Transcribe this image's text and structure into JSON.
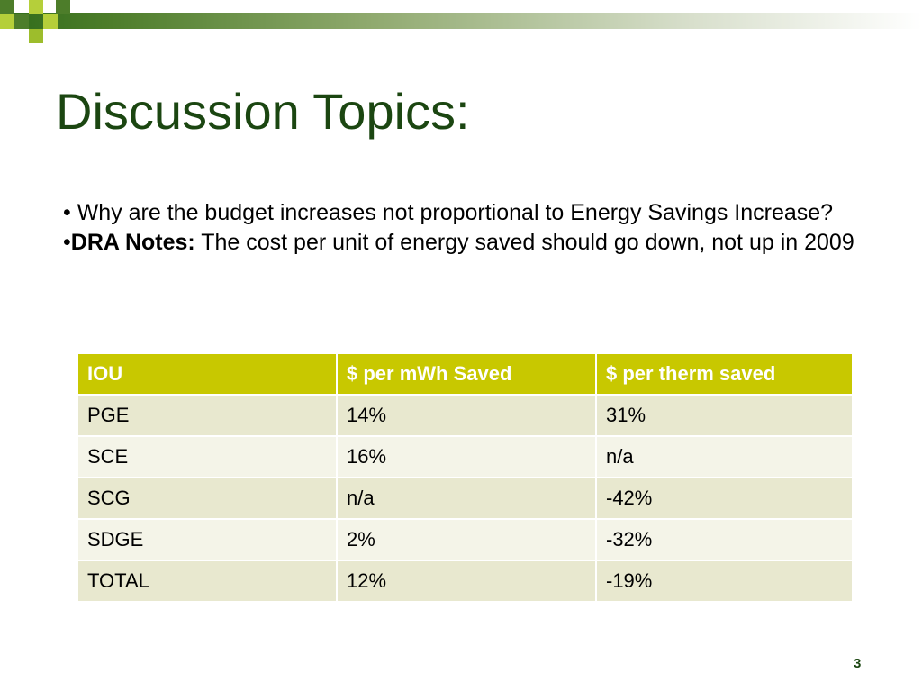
{
  "title": "Discussion Topics:",
  "bullets": {
    "first": "• Why are the budget increases not proportional to Energy Savings Increase?",
    "second_marker": "•",
    "second_bold": "DRA Notes:",
    "second_text": " The cost per unit of energy saved should go down, not up in 2009"
  },
  "table": {
    "headers": [
      "IOU",
      "$ per mWh Saved",
      "$ per therm saved"
    ],
    "rows": [
      [
        "PGE",
        "14%",
        "31%"
      ],
      [
        "SCE",
        "16%",
        "n/a"
      ],
      [
        "SCG",
        "n/a",
        "-42%"
      ],
      [
        "SDGE",
        "2%",
        "-32%"
      ],
      [
        "TOTAL",
        "12%",
        "-19%"
      ]
    ]
  },
  "slide_number": "3",
  "colors": {
    "title": "#1b4611",
    "header_bg": "#c8c800",
    "row_odd": "#e8e8cf",
    "row_even": "#f4f4e8"
  }
}
